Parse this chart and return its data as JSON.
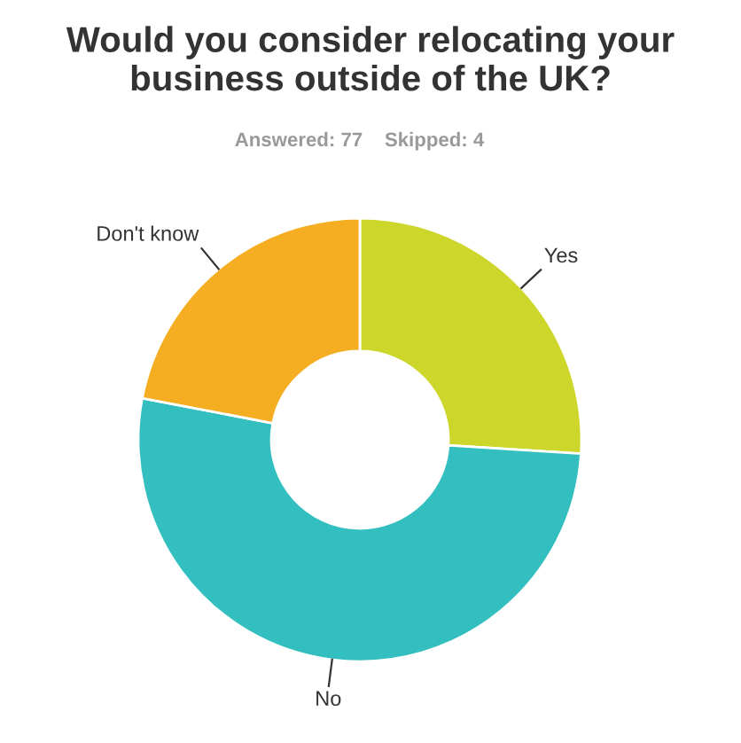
{
  "chart_data": {
    "type": "donut",
    "title": "Would you consider relocating your business outside of the UK?",
    "subtitle": "Answered: 77    Skipped: 4",
    "categories": [
      "Yes",
      "No",
      "Don't know"
    ],
    "values": [
      26,
      52,
      22
    ],
    "colors": [
      "#cdd62a",
      "#33bfbf",
      "#f5ae22"
    ]
  }
}
